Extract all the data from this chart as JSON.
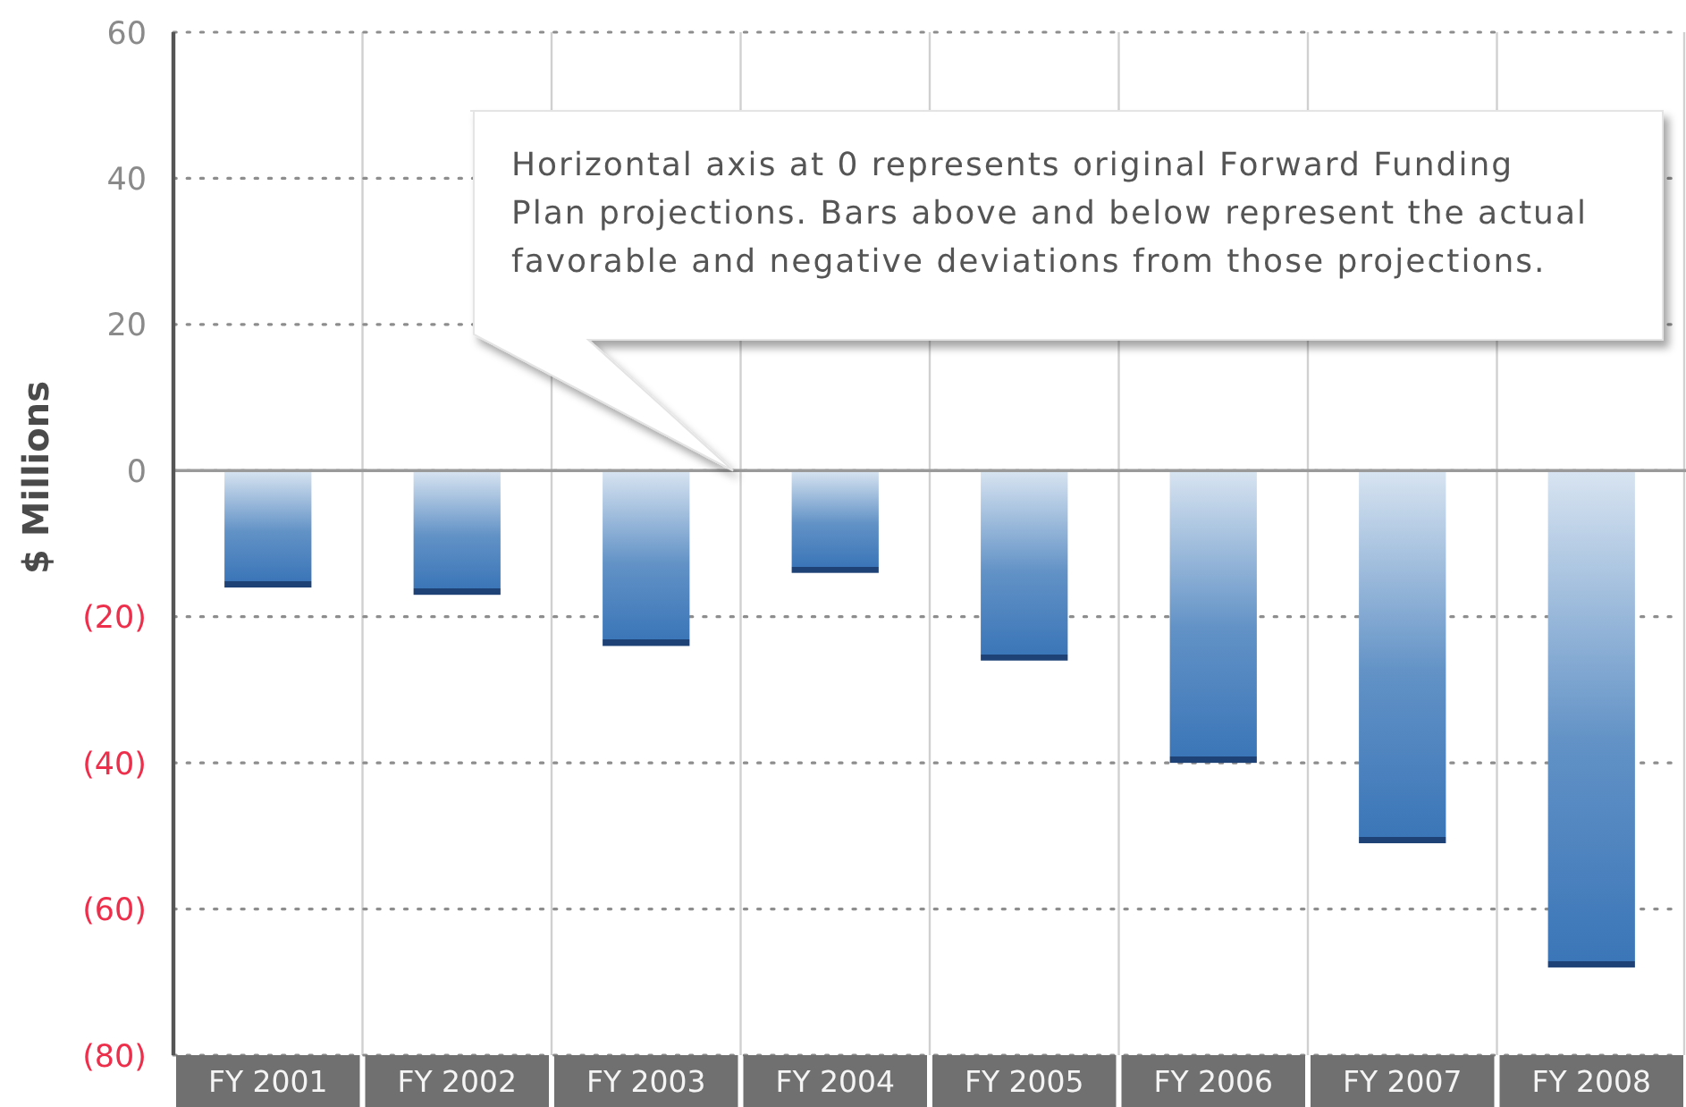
{
  "chart_data": {
    "type": "bar",
    "ylabel": "$ Millions",
    "categories": [
      "FY 2001",
      "FY 2002",
      "FY 2003",
      "FY 2004",
      "FY 2005",
      "FY 2006",
      "FY 2007",
      "FY 2008"
    ],
    "values": [
      -16,
      -17,
      -24,
      -14,
      -26,
      -40,
      -51,
      -68
    ],
    "color": "#3b76b8",
    "ylim": [
      -80,
      60
    ],
    "yticks": [
      60,
      40,
      20,
      0,
      {
        "value": -20,
        "label": "(20)"
      },
      {
        "value": -40,
        "label": "(40)"
      },
      {
        "value": -60,
        "label": "(60)"
      },
      {
        "value": -80,
        "label": "(80)"
      }
    ],
    "grid": true,
    "annotations": [
      "Horizontal axis at 0 represents original Forward Funding Plan projections. Bars above and below represent the actual favorable and negative deviations from those projections."
    ]
  }
}
